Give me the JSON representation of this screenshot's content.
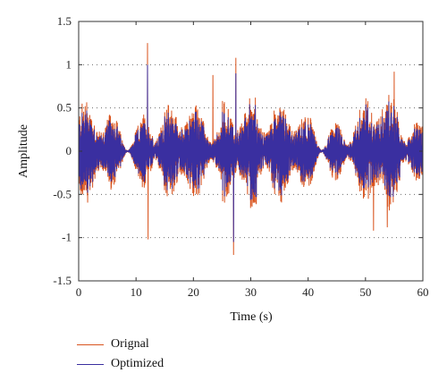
{
  "colors": {
    "original": "#d9541e",
    "optimized": "#3a2fa0"
  },
  "chart_data": {
    "type": "line",
    "xlabel": "Time (s)",
    "ylabel": "Amplitude",
    "xlim": [
      0,
      60
    ],
    "ylim": [
      -1.5,
      1.5
    ],
    "x_ticks": [
      "0",
      "10",
      "20",
      "30",
      "40",
      "50",
      "60"
    ],
    "y_ticks": [
      "1.5",
      "1",
      "0.5",
      "0",
      "-0.5",
      "-1",
      "-1.5"
    ],
    "grid": "dotted horizontal at 1, 0.5, -0.5, -1",
    "legend_placement": "bottom-left",
    "series": [
      {
        "name": "Orignal",
        "color": "#d9541e",
        "description": "dense noise-like signal, envelope ~±0.5 with spikes",
        "peaks": [
          {
            "x": 12.0,
            "y": 1.25
          },
          {
            "x": 12.1,
            "y": -1.02
          },
          {
            "x": 27.0,
            "y": -1.2
          },
          {
            "x": 27.4,
            "y": 1.08
          },
          {
            "x": 23.4,
            "y": 0.88
          },
          {
            "x": 51.4,
            "y": -0.92
          },
          {
            "x": 53.8,
            "y": -0.88
          },
          {
            "x": 55.0,
            "y": 0.92
          }
        ]
      },
      {
        "name": "Optimized",
        "color": "#3a2fa0",
        "description": "dense noise-like signal, slightly smaller amplitude than Orignal",
        "peaks": [
          {
            "x": 12.0,
            "y": 1.0
          },
          {
            "x": 27.0,
            "y": -1.05
          },
          {
            "x": 27.4,
            "y": 0.9
          }
        ]
      }
    ]
  }
}
